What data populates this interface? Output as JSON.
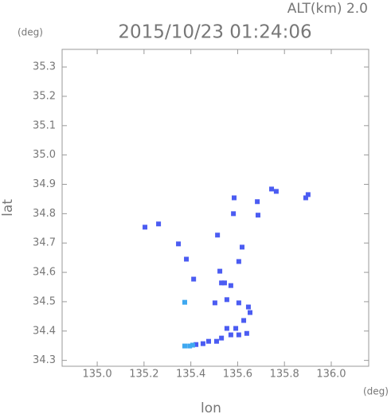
{
  "chart_data": {
    "type": "scatter",
    "title": "2015/10/23 01:24:06",
    "subtitle": "ALT(km) 2.0",
    "x_label": "lon",
    "y_label": "lat",
    "x_unit": "(deg)",
    "y_unit": "(deg)",
    "xlim": [
      134.85,
      136.16
    ],
    "ylim": [
      34.28,
      35.36
    ],
    "xticks": [
      {
        "value": 135,
        "label": "135.0"
      },
      135.2,
      135.4,
      135.6,
      135.8,
      {
        "value": 136,
        "label": "136.0"
      }
    ],
    "yticks": [
      34.3,
      34.4,
      34.5,
      34.6,
      34.7,
      34.8,
      34.9,
      {
        "value": 35,
        "label": "35.0"
      },
      35.1,
      35.2,
      35.3
    ],
    "series": [
      {
        "color": "#4b5cf2",
        "x": [
          135.204,
          135.262,
          135.347,
          135.381,
          135.412,
          135.514,
          135.585,
          135.582,
          135.619,
          135.605,
          135.524,
          135.544,
          135.571,
          135.554,
          135.503,
          135.605,
          135.646,
          135.653,
          135.592,
          135.554,
          135.626,
          135.639,
          135.605,
          135.571,
          135.531,
          135.51,
          135.476,
          135.452,
          135.422,
          135.684,
          135.687,
          135.745,
          135.765,
          135.891,
          135.901,
          135.531
        ],
        "values": [
          34.754,
          34.765,
          34.697,
          34.645,
          34.577,
          34.727,
          34.854,
          34.8,
          34.686,
          34.637,
          34.604,
          34.564,
          34.555,
          34.507,
          34.496,
          34.496,
          34.482,
          34.463,
          34.409,
          34.409,
          34.436,
          34.392,
          34.387,
          34.387,
          34.376,
          34.365,
          34.365,
          34.357,
          34.354,
          34.841,
          34.795,
          34.884,
          34.876,
          34.854,
          34.865,
          34.564
        ]
      },
      {
        "color": "#3fa8f0",
        "x": [
          135.395,
          135.374,
          135.408,
          135.374
        ],
        "values": [
          34.349,
          34.349,
          34.352,
          34.498
        ]
      }
    ]
  }
}
